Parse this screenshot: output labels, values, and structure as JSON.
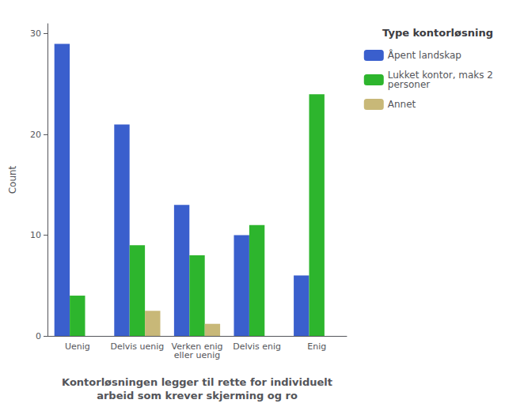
{
  "chart_data": {
    "type": "bar",
    "categories": [
      "Uenig",
      "Delvis uenig",
      "Verken enig\neller uenig",
      "Delvis enig",
      "Enig"
    ],
    "series": [
      {
        "name": "Åpent landskap",
        "color": "#3a5fcd",
        "values": [
          29,
          21,
          13,
          10,
          6
        ]
      },
      {
        "name": "Lukket kontor, maks 2\npersoner",
        "color": "#2db52d",
        "values": [
          4,
          9,
          8,
          11,
          24
        ]
      },
      {
        "name": "Annet",
        "color": "#c8b878",
        "values": [
          0,
          2.5,
          1.2,
          0,
          0
        ]
      }
    ],
    "ylabel": "Count",
    "xlabel": "Kontorløsningen legger til rette for individuelt\narbeid som krever skjerming og ro",
    "legend_title": "Type kontorløsning",
    "legend": "right",
    "ylim": [
      0,
      31
    ],
    "yticks": [
      0,
      10,
      20,
      30
    ],
    "grid": false
  }
}
